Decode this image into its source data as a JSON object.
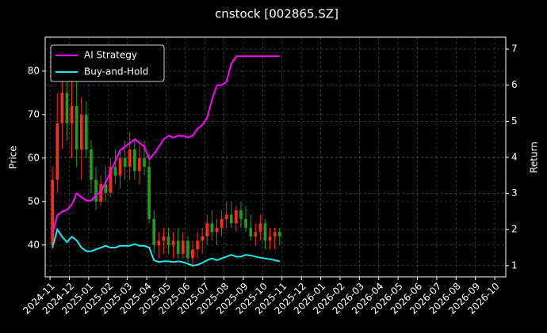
{
  "chart_data": {
    "type": "candlestick",
    "title": "cnstock [002865.SZ]",
    "y_label": "Price",
    "y2_label": "Return",
    "xticks": [
      "2024-11",
      "2024-12",
      "2025-01",
      "2025-02",
      "2025-03",
      "2025-04",
      "2025-05",
      "2025-06",
      "2025-07",
      "2025-08",
      "2025-09",
      "2025-10",
      "2025-11",
      "2025-12",
      "2026-01",
      "2026-02",
      "2026-03",
      "2026-04",
      "2026-05",
      "2026-06",
      "2026-07",
      "2026-08",
      "2026-09",
      "2026-10"
    ],
    "x": [
      "2024-11",
      "2024-11",
      "2024-11",
      "2024-11",
      "2024-12",
      "2024-12",
      "2024-12",
      "2024-12",
      "2025-01",
      "2025-01",
      "2025-01",
      "2025-01",
      "2025-02",
      "2025-02",
      "2025-02",
      "2025-02",
      "2025-03",
      "2025-03",
      "2025-03",
      "2025-03",
      "2025-04",
      "2025-04",
      "2025-04",
      "2025-04",
      "2025-05",
      "2025-05",
      "2025-05",
      "2025-05",
      "2025-06",
      "2025-06",
      "2025-06",
      "2025-06",
      "2025-07",
      "2025-07",
      "2025-07",
      "2025-07",
      "2025-08",
      "2025-08",
      "2025-08",
      "2025-08",
      "2025-09",
      "2025-09",
      "2025-09",
      "2025-09",
      "2025-10",
      "2025-10",
      "2025-10",
      "2025-10"
    ],
    "candles": {
      "up_color": "#ff2a1a",
      "down_color": "#1f9e1f",
      "open": [
        40,
        55,
        68,
        75,
        68,
        72,
        62,
        70,
        62,
        55,
        50,
        54,
        52,
        58,
        56,
        60,
        58,
        62,
        57,
        60,
        58,
        46,
        40,
        41,
        42,
        40,
        41,
        38,
        41,
        37,
        39,
        41,
        42,
        45,
        43,
        44,
        46,
        47,
        45,
        48,
        46,
        44,
        42,
        43,
        45,
        41,
        42,
        43
      ],
      "high": [
        58,
        75,
        84,
        82,
        80,
        78,
        74,
        73,
        64,
        58,
        56,
        58,
        60,
        62,
        62,
        64,
        66,
        64,
        63,
        64,
        61,
        48,
        43,
        44,
        44,
        43,
        44,
        43,
        42,
        41,
        43,
        44,
        47,
        48,
        46,
        48,
        50,
        50,
        49,
        50,
        49,
        47,
        45,
        47,
        46,
        44,
        44,
        44
      ],
      "low": [
        39,
        52,
        62,
        64,
        60,
        58,
        55,
        60,
        52,
        48,
        49,
        50,
        51,
        54,
        53,
        55,
        55,
        55,
        54,
        56,
        45,
        38,
        37,
        38,
        38,
        37,
        37,
        37,
        36,
        35,
        37,
        38,
        40,
        41,
        40,
        42,
        44,
        44,
        43,
        44,
        43,
        41,
        40,
        41,
        39,
        39,
        39,
        40
      ],
      "close": [
        55,
        68,
        75,
        68,
        72,
        62,
        70,
        62,
        55,
        50,
        54,
        52,
        58,
        56,
        60,
        58,
        62,
        57,
        60,
        58,
        46,
        40,
        41,
        42,
        40,
        41,
        38,
        41,
        37,
        39,
        41,
        42,
        45,
        43,
        44,
        46,
        47,
        45,
        48,
        46,
        44,
        42,
        43,
        45,
        41,
        42,
        43,
        42
      ]
    },
    "series": [
      {
        "name": "AI Strategy",
        "color": "#ff00ff",
        "axis": "y2",
        "values": [
          1.9,
          2.4,
          2.5,
          2.55,
          2.7,
          3.0,
          2.9,
          2.8,
          2.8,
          2.95,
          3.05,
          3.3,
          3.6,
          3.9,
          4.2,
          4.3,
          4.4,
          4.5,
          4.4,
          4.3,
          3.95,
          4.1,
          4.3,
          4.5,
          4.6,
          4.55,
          4.6,
          4.6,
          4.55,
          4.6,
          4.8,
          4.9,
          5.1,
          5.6,
          6.0,
          6.0,
          6.1,
          6.6,
          6.8,
          6.8,
          6.8,
          6.8,
          6.8,
          6.8,
          6.8,
          6.8,
          6.8,
          6.8
        ]
      },
      {
        "name": "Buy-and-Hold",
        "color": "#22e5f0",
        "axis": "y2",
        "values": [
          1.5,
          2.0,
          1.8,
          1.65,
          1.8,
          1.7,
          1.5,
          1.4,
          1.4,
          1.45,
          1.5,
          1.55,
          1.5,
          1.5,
          1.55,
          1.55,
          1.55,
          1.6,
          1.55,
          1.55,
          1.5,
          1.15,
          1.1,
          1.12,
          1.12,
          1.1,
          1.12,
          1.1,
          1.05,
          1.0,
          1.02,
          1.08,
          1.15,
          1.2,
          1.15,
          1.2,
          1.25,
          1.3,
          1.25,
          1.25,
          1.3,
          1.28,
          1.25,
          1.22,
          1.2,
          1.18,
          1.15,
          1.12
        ]
      }
    ],
    "ylim": [
      32.7,
      87.8
    ],
    "yticks": [
      40,
      50,
      60,
      70,
      80
    ],
    "y2lim": [
      0.69,
      7.33
    ],
    "y2ticks": [
      1,
      2,
      3,
      4,
      5,
      6,
      7
    ],
    "grid": true,
    "legend": "upper left"
  }
}
